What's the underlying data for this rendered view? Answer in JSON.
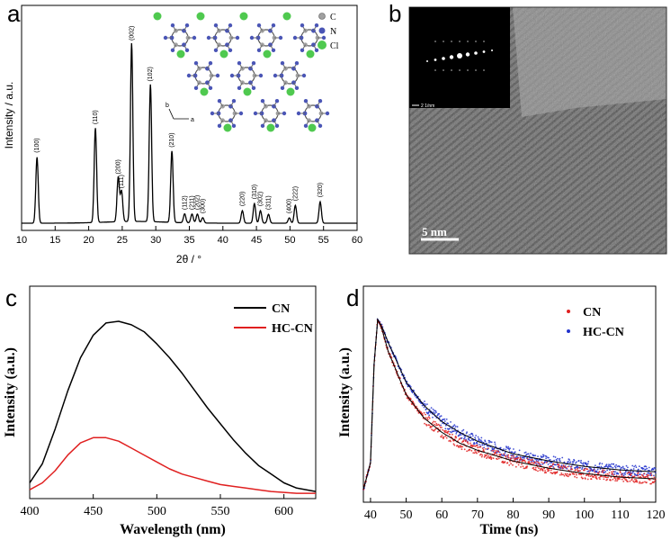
{
  "panel_letters": {
    "a": "a",
    "b": "b",
    "c": "c",
    "d": "d"
  },
  "structure_legend": {
    "c": "C",
    "n": "N",
    "cl": "Cl",
    "axis_b": "b",
    "axis_a": "a"
  },
  "colors": {
    "carbon": "#a0a0a0",
    "nitrogen": "#4a55b5",
    "chlorine": "#4fc94f",
    "cn": "#000000",
    "hccn": "#e02020",
    "blue_series": "#2233cc",
    "red_series": "#e02020"
  },
  "tem": {
    "scale_label": "5 nm",
    "inset_scale": "2 1/nm"
  },
  "chart_data": [
    {
      "type": "line",
      "panel": "a",
      "xlabel": "2θ / °",
      "ylabel": "Intensity / a.u.",
      "xlim": [
        10,
        60
      ],
      "xticks": [
        "10",
        "15",
        "20",
        "25",
        "30",
        "35",
        "40",
        "45",
        "50",
        "55",
        "60"
      ],
      "peaks": [
        {
          "label": "(100)",
          "x": 12.3,
          "h": 0.37
        },
        {
          "label": "(110)",
          "x": 21.0,
          "h": 0.53
        },
        {
          "label": "(200)",
          "x": 24.4,
          "h": 0.25
        },
        {
          "label": "(111)",
          "x": 24.9,
          "h": 0.17
        },
        {
          "label": "(002)",
          "x": 26.4,
          "h": 1.0
        },
        {
          "label": "(102)",
          "x": 29.2,
          "h": 0.77
        },
        {
          "label": "(210)",
          "x": 32.4,
          "h": 0.4
        },
        {
          "label": "(112)",
          "x": 34.3,
          "h": 0.05
        },
        {
          "label": "(211)",
          "x": 35.4,
          "h": 0.05
        },
        {
          "label": "(202)",
          "x": 36.2,
          "h": 0.05
        },
        {
          "label": "(300)",
          "x": 37.0,
          "h": 0.03
        },
        {
          "label": "(220)",
          "x": 42.9,
          "h": 0.07
        },
        {
          "label": "(310)",
          "x": 44.7,
          "h": 0.11
        },
        {
          "label": "(302)",
          "x": 45.6,
          "h": 0.07
        },
        {
          "label": "(311)",
          "x": 46.8,
          "h": 0.05
        },
        {
          "label": "(400)",
          "x": 49.9,
          "h": 0.03
        },
        {
          "label": "(222)",
          "x": 50.8,
          "h": 0.1
        },
        {
          "label": "(320)",
          "x": 54.5,
          "h": 0.12
        }
      ]
    },
    {
      "type": "line",
      "panel": "c",
      "xlabel": "Wavelength (nm)",
      "ylabel": "Intensity (a.u.)",
      "xlim": [
        400,
        625
      ],
      "xticks": [
        "400",
        "450",
        "500",
        "550",
        "600"
      ],
      "series": [
        {
          "name": "CN",
          "color": "#000000",
          "x": [
            400,
            410,
            420,
            430,
            440,
            450,
            460,
            470,
            480,
            490,
            500,
            510,
            520,
            530,
            540,
            550,
            560,
            570,
            580,
            590,
            600,
            610,
            625
          ],
          "y": [
            0.07,
            0.18,
            0.38,
            0.6,
            0.79,
            0.92,
            0.99,
            1.0,
            0.98,
            0.94,
            0.87,
            0.79,
            0.7,
            0.6,
            0.5,
            0.41,
            0.32,
            0.24,
            0.17,
            0.12,
            0.07,
            0.04,
            0.02
          ]
        },
        {
          "name": "HC-CN",
          "color": "#e02020",
          "x": [
            400,
            410,
            420,
            430,
            440,
            450,
            460,
            470,
            480,
            490,
            500,
            510,
            520,
            530,
            540,
            550,
            560,
            570,
            580,
            590,
            600,
            610,
            625
          ],
          "y": [
            0.03,
            0.07,
            0.14,
            0.23,
            0.3,
            0.33,
            0.33,
            0.31,
            0.27,
            0.23,
            0.19,
            0.15,
            0.12,
            0.1,
            0.08,
            0.06,
            0.05,
            0.04,
            0.03,
            0.02,
            0.015,
            0.01,
            0.01
          ]
        }
      ]
    },
    {
      "type": "scatter",
      "panel": "d",
      "xlabel": "Time (ns)",
      "ylabel": "Intensity (a.u.)",
      "xlim": [
        38,
        120
      ],
      "xticks": [
        "40",
        "50",
        "60",
        "70",
        "80",
        "90",
        "100",
        "110",
        "120"
      ],
      "series": [
        {
          "name": "CN",
          "color": "#e02020",
          "x": [
            38,
            40,
            41,
            42,
            43,
            45,
            50,
            55,
            60,
            65,
            70,
            80,
            90,
            100,
            110,
            120
          ],
          "y": [
            0.05,
            0.2,
            0.75,
            1.0,
            0.96,
            0.82,
            0.58,
            0.45,
            0.37,
            0.31,
            0.27,
            0.21,
            0.17,
            0.14,
            0.12,
            0.11
          ]
        },
        {
          "name": "HC-CN",
          "color": "#2233cc",
          "x": [
            38,
            40,
            41,
            42,
            43,
            45,
            50,
            55,
            60,
            65,
            70,
            80,
            90,
            100,
            110,
            120
          ],
          "y": [
            0.05,
            0.2,
            0.75,
            1.0,
            0.97,
            0.87,
            0.65,
            0.52,
            0.43,
            0.37,
            0.32,
            0.25,
            0.21,
            0.18,
            0.16,
            0.15
          ]
        }
      ]
    }
  ]
}
